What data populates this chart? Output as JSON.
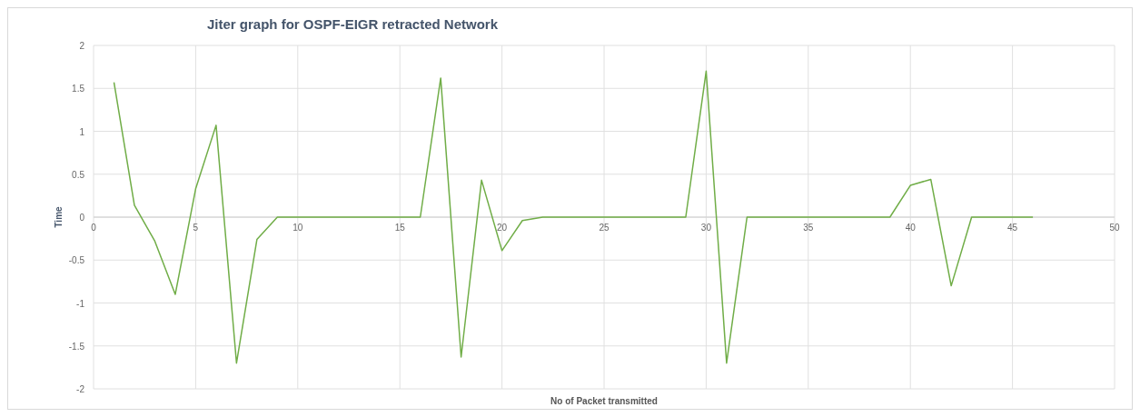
{
  "chart_data": {
    "type": "line",
    "title": "Jiter graph for OSPF-EIGR retracted Network",
    "xlabel": "No of Packet transmitted",
    "ylabel": "Time",
    "x": [
      1,
      2,
      3,
      4,
      5,
      6,
      7,
      8,
      9,
      10,
      11,
      12,
      13,
      14,
      15,
      16,
      17,
      18,
      19,
      20,
      21,
      22,
      23,
      24,
      25,
      26,
      27,
      28,
      29,
      30,
      31,
      32,
      33,
      34,
      35,
      36,
      37,
      38,
      39,
      40,
      41,
      42,
      43,
      44,
      45,
      46
    ],
    "series": [
      {
        "color": "#70ad47",
        "values": [
          1.57,
          0.14,
          -0.28,
          -0.9,
          0.33,
          1.07,
          -1.7,
          -0.26,
          0,
          0,
          0,
          0,
          0,
          0,
          0,
          0,
          1.62,
          -1.63,
          0.43,
          -0.39,
          -0.04,
          0,
          0,
          0,
          0,
          0,
          0,
          0,
          0,
          1.7,
          -1.7,
          0,
          0,
          0,
          0,
          0,
          0,
          0,
          0,
          0.37,
          0.44,
          -0.8,
          0,
          0,
          0,
          0
        ]
      }
    ],
    "xlim": [
      0,
      50
    ],
    "xticks": [
      0,
      5,
      10,
      15,
      20,
      25,
      30,
      35,
      40,
      45,
      50
    ],
    "ylim": [
      -2,
      2
    ],
    "yticks": [
      -2,
      -1.5,
      -1,
      -0.5,
      0,
      0.5,
      1,
      1.5,
      2
    ],
    "grid": true,
    "marker": "none",
    "line_style": "solid"
  }
}
